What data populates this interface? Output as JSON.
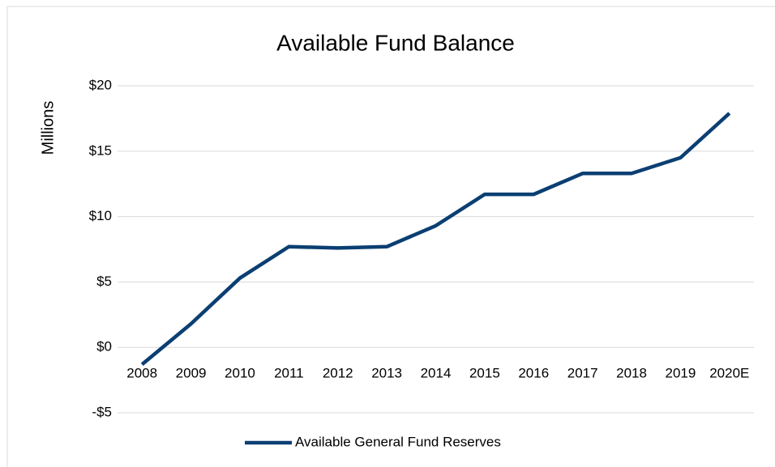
{
  "chart_data": {
    "type": "line",
    "title": "Available Fund Balance",
    "y_label": "Millions",
    "categories": [
      "2008",
      "2009",
      "2010",
      "2011",
      "2012",
      "2013",
      "2014",
      "2015",
      "2016",
      "2017",
      "2018",
      "2019",
      "2020E"
    ],
    "series": [
      {
        "name": "Available General Fund Reserves",
        "color": "#0b3f73",
        "values": [
          -1.3,
          1.8,
          5.3,
          7.7,
          7.6,
          7.7,
          9.3,
          11.7,
          11.7,
          13.3,
          13.3,
          14.5,
          17.9
        ]
      }
    ],
    "ylim": [
      -5,
      20
    ],
    "yticks": [
      {
        "value": -5,
        "label": "-$5"
      },
      {
        "value": 0,
        "label": "$0"
      },
      {
        "value": 5,
        "label": "$5"
      },
      {
        "value": 10,
        "label": "$10"
      },
      {
        "value": 15,
        "label": "$15"
      },
      {
        "value": 20,
        "label": "$20"
      }
    ],
    "grid": true,
    "legend": "bottom"
  }
}
